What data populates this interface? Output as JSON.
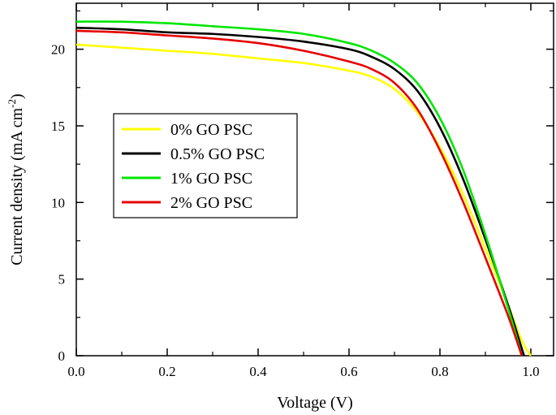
{
  "chart_data": {
    "type": "line",
    "xlabel": "Voltage (V)",
    "ylabel_main": "Current density (mA cm",
    "ylabel_sup": "-2",
    "ylabel_close": ")",
    "xlim": [
      0.0,
      1.05
    ],
    "ylim": [
      0,
      23
    ],
    "x_ticks": [
      0.0,
      0.2,
      0.4,
      0.6,
      0.8,
      1.0
    ],
    "x_tick_labels": [
      "0.0",
      "0.2",
      "0.4",
      "0.6",
      "0.8",
      "1.0"
    ],
    "y_ticks": [
      0,
      5,
      10,
      15,
      20
    ],
    "y_tick_labels": [
      "0",
      "5",
      "10",
      "15",
      "20"
    ],
    "legend_position": "middle-left",
    "series": [
      {
        "name": "0% GO PSC",
        "color": "#ffff00",
        "x": [
          0.0,
          0.1,
          0.2,
          0.3,
          0.4,
          0.5,
          0.6,
          0.65,
          0.7,
          0.75,
          0.8,
          0.85,
          0.9,
          0.95,
          0.98,
          1.0
        ],
        "y": [
          20.3,
          20.1,
          19.9,
          19.7,
          19.4,
          19.1,
          18.6,
          18.2,
          17.4,
          15.9,
          13.6,
          10.6,
          7.0,
          3.3,
          1.0,
          0.0
        ]
      },
      {
        "name": "0.5% GO PSC",
        "color": "#000000",
        "x": [
          0.0,
          0.1,
          0.2,
          0.3,
          0.4,
          0.5,
          0.6,
          0.65,
          0.7,
          0.75,
          0.8,
          0.85,
          0.9,
          0.95,
          0.985
        ],
        "y": [
          21.4,
          21.3,
          21.1,
          21.0,
          20.8,
          20.5,
          20.0,
          19.5,
          18.7,
          17.3,
          14.9,
          11.6,
          7.6,
          3.3,
          0.0
        ]
      },
      {
        "name": "1% GO PSC",
        "color": "#00e600",
        "x": [
          0.0,
          0.1,
          0.2,
          0.3,
          0.4,
          0.5,
          0.6,
          0.65,
          0.7,
          0.75,
          0.8,
          0.85,
          0.9,
          0.95,
          0.98
        ],
        "y": [
          21.8,
          21.8,
          21.7,
          21.5,
          21.3,
          21.0,
          20.4,
          19.9,
          19.1,
          17.8,
          15.5,
          12.2,
          7.9,
          3.1,
          0.0
        ]
      },
      {
        "name": "2% GO PSC",
        "color": "#e60000",
        "x": [
          0.0,
          0.1,
          0.2,
          0.3,
          0.4,
          0.5,
          0.6,
          0.65,
          0.7,
          0.75,
          0.8,
          0.85,
          0.9,
          0.95,
          0.98
        ],
        "y": [
          21.2,
          21.1,
          20.9,
          20.7,
          20.4,
          19.9,
          19.2,
          18.7,
          17.8,
          16.1,
          13.4,
          10.1,
          6.4,
          2.6,
          0.0
        ]
      }
    ]
  }
}
